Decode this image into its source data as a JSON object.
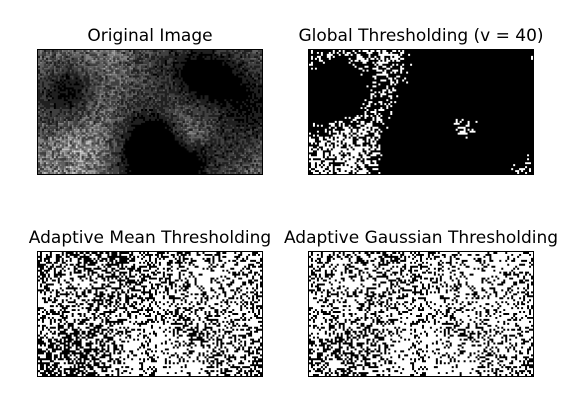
{
  "figure": {
    "panels": [
      {
        "title": "Original Image",
        "kind": "grayscale"
      },
      {
        "title": "Global Thresholding (v = 40)",
        "kind": "binary-global"
      },
      {
        "title": "Adaptive Mean Thresholding",
        "kind": "binary-adaptive-mean"
      },
      {
        "title": "Adaptive Gaussian Thresholding",
        "kind": "binary-adaptive-gaussian"
      }
    ]
  },
  "colors": {
    "background": "#ffffff",
    "ink": "#000000",
    "frame": "#000000"
  }
}
